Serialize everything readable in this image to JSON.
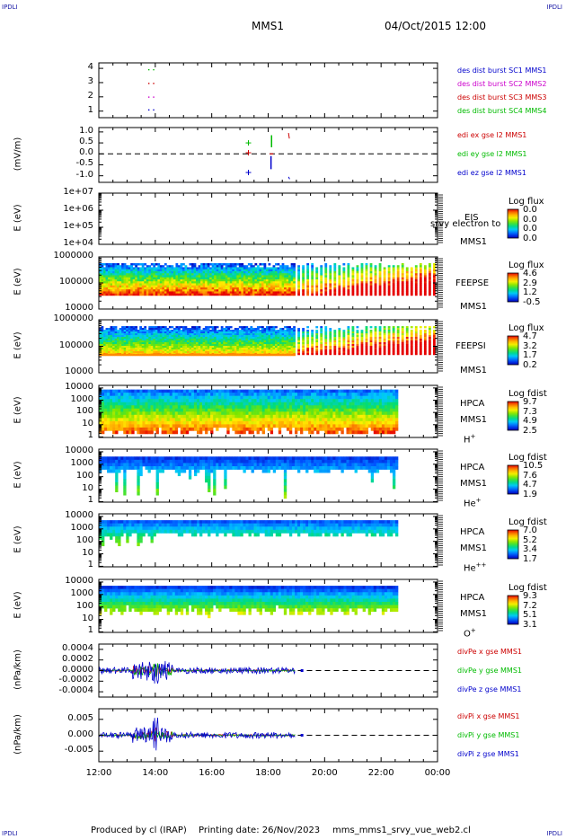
{
  "corners": {
    "tl": "IPDLI",
    "tr": "IPDLI",
    "bl": "IPDLI",
    "br": "IPDLI"
  },
  "header": {
    "mission": "MMS1",
    "datetime": "04/Oct/2015 12:00"
  },
  "footer": {
    "produced": "Produced by cl (IRAP)",
    "printing": "Printing date: 26/Nov/2023",
    "script": "mms_mms1_srvy_vue_web2.cl"
  },
  "x_ticks": [
    "12:00",
    "14:00",
    "16:00",
    "18:00",
    "20:00",
    "22:00",
    "00:00"
  ],
  "panel1": {
    "yticks": [
      "4",
      "3",
      "2",
      "1"
    ],
    "legend": [
      {
        "text": "des dist burst SC1 MMS1",
        "color": "#0000cc"
      },
      {
        "text": "des dist burst SC2 MMS2",
        "color": "#cc00cc"
      },
      {
        "text": "des dist burst SC3 MMS3",
        "color": "#cc0000"
      },
      {
        "text": "des dist burst SC4 MMS4",
        "color": "#00bb00"
      }
    ]
  },
  "panel2": {
    "ylabel": "(mV/m)",
    "yticks": [
      "1.0",
      "0.5",
      "0.0",
      "-0.5",
      "-1.0"
    ],
    "legend": [
      {
        "text": "edi ex gse l2 MMS1",
        "color": "#cc0000"
      },
      {
        "text": "edi ey gse l2 MMS1",
        "color": "#00bb00"
      },
      {
        "text": "edi ez gse l2 MMS1",
        "color": "#0000cc"
      }
    ]
  },
  "panel3": {
    "ylabel": "E (eV)",
    "yticks": [
      "1e+07",
      "1e+06",
      "1e+05",
      "1e+04"
    ],
    "name": "EIS",
    "sc": "MMS1",
    "overlay": "srvy electron to",
    "cb_title": "Log flux",
    "cb_vals": [
      "0.0",
      "0.0",
      "0.0",
      "0.0"
    ]
  },
  "panel4": {
    "ylabel": "E (eV)",
    "yticks": [
      "1000000",
      "100000",
      "10000"
    ],
    "name": "FEEPSE",
    "sc": "MMS1",
    "cb_title": "Log flux",
    "cb_vals": [
      "4.6",
      "2.9",
      "1.2",
      "-0.5"
    ]
  },
  "panel5": {
    "ylabel": "E (eV)",
    "yticks": [
      "1000000",
      "100000",
      "10000"
    ],
    "name": "FEEPSI",
    "sc": "MMS1",
    "cb_title": "Log flux",
    "cb_vals": [
      "4.7",
      "3.2",
      "1.7",
      "0.2"
    ]
  },
  "panel6": {
    "ylabel": "E (eV)",
    "yticks": [
      "10000",
      "1000",
      "100",
      "10",
      "1"
    ],
    "name": "HPCA",
    "sc": "MMS1",
    "species": "H+",
    "cb_title": "Log fdist",
    "cb_vals": [
      "9.7",
      "7.3",
      "4.9",
      "2.5"
    ]
  },
  "panel7": {
    "ylabel": "E (eV)",
    "yticks": [
      "10000",
      "1000",
      "100",
      "10",
      "1"
    ],
    "name": "HPCA",
    "sc": "MMS1",
    "species": "He+",
    "cb_title": "Log fdist",
    "cb_vals": [
      "10.5",
      "7.6",
      "4.7",
      "1.9"
    ]
  },
  "panel8": {
    "ylabel": "E (eV)",
    "yticks": [
      "10000",
      "1000",
      "100",
      "10",
      "1"
    ],
    "name": "HPCA",
    "sc": "MMS1",
    "species": "He++",
    "cb_title": "Log fdist",
    "cb_vals": [
      "7.0",
      "5.2",
      "3.4",
      "1.7"
    ]
  },
  "panel9": {
    "ylabel": "E (eV)",
    "yticks": [
      "10000",
      "1000",
      "100",
      "10",
      "1"
    ],
    "name": "HPCA",
    "sc": "MMS1",
    "species": "O+",
    "cb_title": "Log fdist",
    "cb_vals": [
      "9.3",
      "7.2",
      "5.1",
      "3.1"
    ]
  },
  "panel10": {
    "ylabel": "(nPa/km)",
    "yticks": [
      "0.0004",
      "0.0002",
      "0.0000",
      "-0.0002",
      "-0.0004"
    ],
    "legend": [
      {
        "text": "divPe x gse MMS1",
        "color": "#cc0000"
      },
      {
        "text": "divPe y gse MMS1",
        "color": "#00bb00"
      },
      {
        "text": "divPe z gse MMS1",
        "color": "#0000cc"
      }
    ]
  },
  "panel11": {
    "ylabel": "(nPa/km)",
    "yticks": [
      "0.005",
      "0.000",
      "-0.005"
    ],
    "legend": [
      {
        "text": "divPi x gse MMS1",
        "color": "#cc0000"
      },
      {
        "text": "divPi y gse MMS1",
        "color": "#00bb00"
      },
      {
        "text": "divPi z gse MMS1",
        "color": "#0000cc"
      }
    ]
  },
  "chart_data": [
    {
      "type": "scatter",
      "title": "",
      "x": "time 12:00-00:00",
      "xlim": [
        "12:00",
        "00:00"
      ],
      "ylim": [
        0.5,
        4.5
      ],
      "series": [
        {
          "name": "des dist burst SC1 MMS1",
          "y": 1
        },
        {
          "name": "des dist burst SC2 MMS2",
          "y": 2
        },
        {
          "name": "des dist burst SC3 MMS3",
          "y": 3
        },
        {
          "name": "des dist burst SC4 MMS4",
          "y": 4
        }
      ],
      "x_values_hours": [
        13.75
      ]
    },
    {
      "type": "line",
      "ylabel": "(mV/m)",
      "ylim": [
        -1.3,
        1.2
      ],
      "series": [
        {
          "name": "edi ex gse l2 MMS1",
          "x_hours": [
            17.3,
            18.1,
            18.7
          ],
          "y": [
            0.05,
            -0.5,
            0.9
          ]
        },
        {
          "name": "edi ey gse l2 MMS1",
          "x_hours": [
            17.3,
            18.1
          ],
          "y": [
            0.5,
            0.7
          ]
        },
        {
          "name": "edi ez gse l2 MMS1",
          "x_hours": [
            17.3,
            18.1,
            18.7
          ],
          "y": [
            -0.85,
            -0.5,
            -1.1
          ]
        }
      ]
    },
    {
      "type": "heatmap",
      "ylabel": "E (eV)",
      "yscale": "log",
      "ylim": [
        10000,
        10000000
      ],
      "name": "EIS",
      "colorbar": [
        0.0,
        0.0
      ]
    },
    {
      "type": "heatmap",
      "ylabel": "E (eV)",
      "yscale": "log",
      "ylim": [
        10000,
        1000000
      ],
      "name": "FEEPSE",
      "colorbar": [
        -0.5,
        4.6
      ],
      "xlim_hours": [
        12,
        24
      ]
    },
    {
      "type": "heatmap",
      "ylabel": "E (eV)",
      "yscale": "log",
      "ylim": [
        10000,
        1000000
      ],
      "name": "FEEPSI",
      "colorbar": [
        0.2,
        4.7
      ],
      "xlim_hours": [
        12,
        24
      ]
    },
    {
      "type": "heatmap",
      "ylabel": "E (eV)",
      "yscale": "log",
      "ylim": [
        1,
        30000
      ],
      "name": "HPCA H+",
      "colorbar": [
        2.5,
        9.7
      ],
      "data_end_hour": 22.6
    },
    {
      "type": "heatmap",
      "ylabel": "E (eV)",
      "yscale": "log",
      "ylim": [
        1,
        30000
      ],
      "name": "HPCA He+",
      "colorbar": [
        1.9,
        10.5
      ],
      "data_end_hour": 22.6
    },
    {
      "type": "heatmap",
      "ylabel": "E (eV)",
      "yscale": "log",
      "ylim": [
        1,
        30000
      ],
      "name": "HPCA He++",
      "colorbar": [
        1.7,
        7.0
      ],
      "data_end_hour": 22.6
    },
    {
      "type": "heatmap",
      "ylabel": "E (eV)",
      "yscale": "log",
      "ylim": [
        1,
        30000
      ],
      "name": "HPCA O+",
      "colorbar": [
        3.1,
        9.3
      ],
      "data_end_hour": 22.6
    },
    {
      "type": "line",
      "ylabel": "(nPa/km)",
      "ylim": [
        -0.0005,
        0.0005
      ],
      "data_end_hour": 19.0,
      "series": [
        {
          "name": "divPe x gse MMS1"
        },
        {
          "name": "divPe y gse MMS1"
        },
        {
          "name": "divPe z gse MMS1"
        }
      ]
    },
    {
      "type": "line",
      "ylabel": "(nPa/km)",
      "ylim": [
        -0.007,
        0.007
      ],
      "data_end_hour": 19.0,
      "series": [
        {
          "name": "divPi x gse MMS1"
        },
        {
          "name": "divPi y gse MMS1"
        },
        {
          "name": "divPi z gse MMS1"
        }
      ]
    }
  ]
}
